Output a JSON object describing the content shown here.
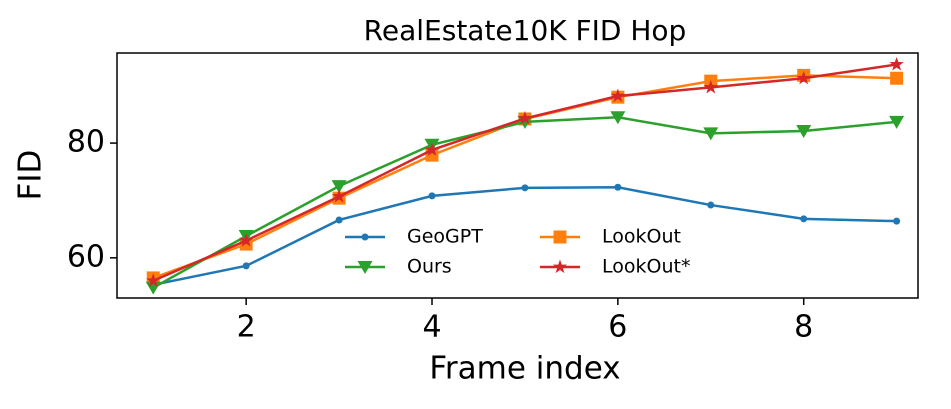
{
  "chart_data": {
    "type": "line",
    "title": "RealEstate10K FID Hop",
    "x_label": "Frame index",
    "y_label": "FID",
    "x": [
      1,
      2,
      3,
      4,
      5,
      6,
      7,
      8,
      9
    ],
    "series": [
      {
        "name": "GeoGPT",
        "color": "#1f77b4",
        "marker": "circle",
        "values": [
          55.3,
          58.6,
          66.6,
          70.8,
          72.2,
          72.3,
          69.2,
          66.8,
          66.4
        ]
      },
      {
        "name": "LookOut",
        "color": "#ff7f0e",
        "marker": "square",
        "values": [
          56.5,
          62.4,
          70.4,
          77.9,
          84.2,
          88.0,
          90.8,
          91.8,
          91.3
        ]
      },
      {
        "name": "Ours",
        "color": "#2ca02c",
        "marker": "triangle-down",
        "values": [
          54.8,
          63.8,
          72.5,
          79.7,
          83.7,
          84.5,
          81.7,
          82.1,
          83.7
        ]
      },
      {
        "name": "LookOut*",
        "color": "#d62728",
        "marker": "star",
        "values": [
          56.0,
          63.0,
          70.7,
          78.8,
          84.3,
          88.2,
          89.7,
          91.3,
          93.7
        ]
      }
    ],
    "xlim": [
      0.61,
      9.23
    ],
    "ylim": [
      53,
      95.7
    ],
    "xticks": [
      2,
      4,
      6,
      8
    ],
    "yticks": [
      60,
      80
    ],
    "legend": "lower center",
    "grid": false
  }
}
